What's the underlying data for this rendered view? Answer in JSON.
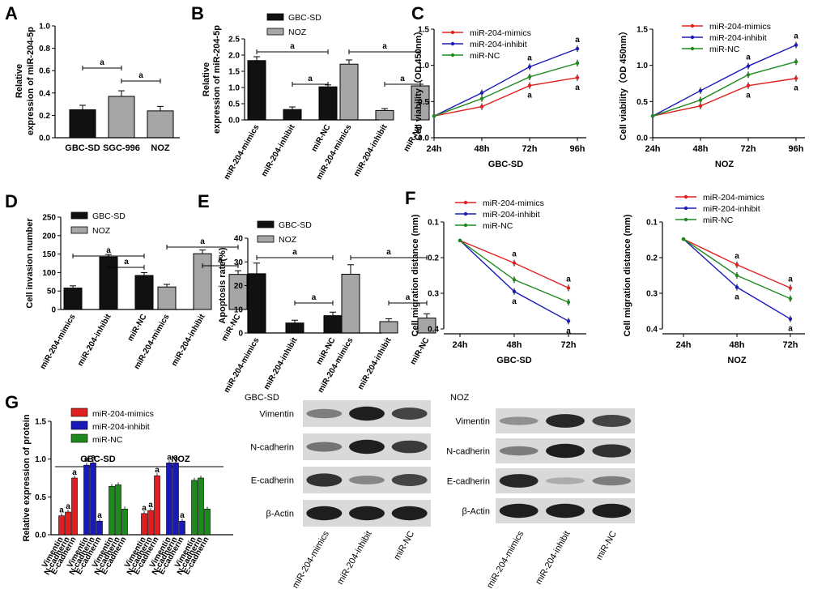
{
  "colors": {
    "black": "#111111",
    "gray": "#a6a6a6",
    "mimics": "#e02020",
    "inhibit": "#1a1ab8",
    "nc": "#1e8a1e",
    "blot_bg": "#d9d9d9",
    "band": "#1c1c1c"
  },
  "chart_data": [
    {
      "id": "A",
      "type": "bar",
      "panel_label": "A",
      "ylabel": [
        "Relative",
        "expression of miR-204-5p"
      ],
      "ylim": [
        0,
        1.0
      ],
      "yticks": [
        "0.0",
        "0.2",
        "0.4",
        "0.6",
        "0.8",
        "1.0"
      ],
      "categories": [
        "GBC-SD",
        "SGC-996",
        "NOZ"
      ],
      "values": [
        0.25,
        0.37,
        0.24
      ],
      "errors": [
        0.04,
        0.05,
        0.04
      ],
      "significance": [
        "a",
        "a"
      ]
    },
    {
      "id": "B",
      "type": "bar",
      "panel_label": "B",
      "ylabel": [
        "Relative",
        "expression of miR-204-5p"
      ],
      "ylim": [
        0,
        2.5
      ],
      "yticks": [
        "0.0",
        "0.5",
        "1.0",
        "1.5",
        "2.0",
        "2.5"
      ],
      "legend": [
        "GBC-SD",
        "NOZ"
      ],
      "categories": [
        "miR-204-mimics",
        "miR-204-inhibit",
        "miR-NC"
      ],
      "series": [
        {
          "name": "GBC-SD",
          "values": [
            1.83,
            0.32,
            1.02
          ],
          "errors": [
            0.12,
            0.08,
            0.06
          ]
        },
        {
          "name": "NOZ",
          "values": [
            1.72,
            0.29,
            1.05
          ],
          "errors": [
            0.13,
            0.06,
            0.05
          ]
        }
      ],
      "significance": [
        "a",
        "a"
      ]
    },
    {
      "id": "C1",
      "type": "line",
      "panel_label": "C",
      "ylabel": "Cell viability（OD 450nm）",
      "xlabel": "GBC-SD",
      "ylim": [
        0,
        1.5
      ],
      "yticks": [
        "0.0",
        "0.5",
        "1.0",
        "1.5"
      ],
      "x": [
        "24h",
        "48h",
        "72h",
        "96h"
      ],
      "series": [
        {
          "name": "miR-204-mimics",
          "values": [
            0.3,
            0.43,
            0.72,
            0.83
          ]
        },
        {
          "name": "miR-204-inhibit",
          "values": [
            0.3,
            0.62,
            0.98,
            1.23
          ]
        },
        {
          "name": "miR-NC",
          "values": [
            0.3,
            0.54,
            0.84,
            1.03
          ]
        }
      ],
      "significance": "a"
    },
    {
      "id": "C2",
      "type": "line",
      "ylabel": "Cell viability（OD 450nm）",
      "xlabel": "NOZ",
      "ylim": [
        0,
        1.5
      ],
      "yticks": [
        "0.0",
        "0.5",
        "1.0",
        "1.5"
      ],
      "x": [
        "24h",
        "48h",
        "72h",
        "96h"
      ],
      "series": [
        {
          "name": "miR-204-mimics",
          "values": [
            0.3,
            0.44,
            0.72,
            0.82
          ]
        },
        {
          "name": "miR-204-inhibit",
          "values": [
            0.3,
            0.65,
            0.99,
            1.28
          ]
        },
        {
          "name": "miR-NC",
          "values": [
            0.3,
            0.52,
            0.87,
            1.05
          ]
        }
      ],
      "significance": "a"
    },
    {
      "id": "D",
      "type": "bar",
      "panel_label": "D",
      "ylabel": "Cell invasion number",
      "ylim": [
        0,
        250
      ],
      "yticks": [
        "0",
        "50",
        "100",
        "150",
        "200",
        "250"
      ],
      "legend": [
        "GBC-SD",
        "NOZ"
      ],
      "categories": [
        "miR-204-mimics",
        "miR-204-inhibit",
        "miR-NC"
      ],
      "series": [
        {
          "name": "GBC-SD",
          "values": [
            58,
            142,
            92
          ],
          "errors": [
            6,
            7,
            8
          ]
        },
        {
          "name": "NOZ",
          "values": [
            61,
            151,
            95
          ],
          "errors": [
            7,
            10,
            10
          ]
        }
      ],
      "significance": [
        "a",
        "a"
      ]
    },
    {
      "id": "E",
      "type": "bar",
      "panel_label": "E",
      "ylabel": "Apoptosis rate(%)",
      "ylim": [
        0,
        40
      ],
      "yticks": [
        "0",
        "10",
        "20",
        "30",
        "40"
      ],
      "legend": [
        "GBC-SD",
        "NOZ"
      ],
      "categories": [
        "miR-204-mimics",
        "miR-204-inhibit",
        "miR-NC"
      ],
      "series": [
        {
          "name": "GBC-SD",
          "values": [
            25.0,
            4.2,
            7.3
          ],
          "errors": [
            4.5,
            1.2,
            1.5
          ]
        },
        {
          "name": "NOZ",
          "values": [
            24.8,
            4.8,
            6.3
          ],
          "errors": [
            4.0,
            1.2,
            1.8
          ]
        }
      ],
      "significance": [
        "a",
        "a"
      ]
    },
    {
      "id": "F1",
      "type": "line",
      "panel_label": "F",
      "ylabel": "Cell migration distance (mm)",
      "xlabel": "GBC-SD",
      "ylim": [
        0.1,
        0.4
      ],
      "inverted": true,
      "yticks": [
        "0.1",
        "0.2",
        "0.3",
        "0.4"
      ],
      "x": [
        "24h",
        "48h",
        "72h"
      ],
      "series": [
        {
          "name": "miR-204-mimics",
          "values": [
            0.152,
            0.215,
            0.285
          ]
        },
        {
          "name": "miR-204-inhibit",
          "values": [
            0.152,
            0.295,
            0.378
          ]
        },
        {
          "name": "miR-NC",
          "values": [
            0.152,
            0.262,
            0.325
          ]
        }
      ],
      "significance": "a"
    },
    {
      "id": "F2",
      "type": "line",
      "ylabel": "Cell migration distance (mm)",
      "xlabel": "NOZ",
      "ylim": [
        0.1,
        0.4
      ],
      "inverted": true,
      "yticks": [
        "0.1",
        "0.2",
        "0.3",
        "0.4"
      ],
      "x": [
        "24h",
        "48h",
        "72h"
      ],
      "series": [
        {
          "name": "miR-204-mimics",
          "values": [
            0.148,
            0.22,
            0.285
          ]
        },
        {
          "name": "miR-204-inhibit",
          "values": [
            0.148,
            0.283,
            0.372
          ]
        },
        {
          "name": "miR-NC",
          "values": [
            0.148,
            0.25,
            0.315
          ]
        }
      ],
      "significance": "a"
    },
    {
      "id": "G",
      "type": "bar",
      "panel_label": "G",
      "ylabel": "Relative expression of protein",
      "ylim": [
        0,
        1.5
      ],
      "yticks": [
        "0.0",
        "0.5",
        "1.0",
        "1.5"
      ],
      "groups": [
        "GBC-SD",
        "NOZ"
      ],
      "proteins": [
        "Vimentin",
        "N-cadherin",
        "E-cadherin"
      ],
      "series": [
        {
          "name": "miR-204-mimics",
          "values": [
            [
              0.25,
              0.3,
              0.75
            ],
            [
              0.28,
              0.32,
              0.78
            ]
          ]
        },
        {
          "name": "miR-204-inhibit",
          "values": [
            [
              0.92,
              0.95,
              0.18
            ],
            [
              0.95,
              0.95,
              0.18
            ]
          ]
        },
        {
          "name": "miR-NC",
          "values": [
            [
              0.64,
              0.66,
              0.34
            ],
            [
              0.72,
              0.75,
              0.34
            ]
          ]
        }
      ],
      "significance": "a"
    }
  ],
  "blots": [
    {
      "title": "GBC-SD",
      "rows": [
        {
          "label": "Vimentin",
          "intensity": [
            0.45,
            0.95,
            0.75
          ]
        },
        {
          "label": "N-cadherin",
          "intensity": [
            0.5,
            0.95,
            0.8
          ]
        },
        {
          "label": "E-cadherin",
          "intensity": [
            0.85,
            0.4,
            0.75
          ]
        },
        {
          "label": "β-Actin",
          "intensity": [
            0.95,
            0.95,
            0.95
          ]
        }
      ],
      "lanes": [
        "miR-204-mimics",
        "miR-204-inhibit",
        "miR-NC"
      ]
    },
    {
      "title": "NOZ",
      "rows": [
        {
          "label": "Vimentin",
          "intensity": [
            0.35,
            0.9,
            0.75
          ]
        },
        {
          "label": "N-cadherin",
          "intensity": [
            0.45,
            0.95,
            0.85
          ]
        },
        {
          "label": "E-cadherin",
          "intensity": [
            0.9,
            0.2,
            0.45
          ]
        },
        {
          "label": "β-Actin",
          "intensity": [
            0.95,
            0.95,
            0.95
          ]
        }
      ],
      "lanes": [
        "miR-204-mimics",
        "miR-204-inhibit",
        "miR-NC"
      ]
    }
  ]
}
